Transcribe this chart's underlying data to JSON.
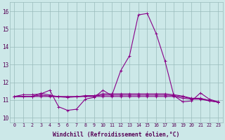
{
  "x": [
    0,
    1,
    2,
    3,
    4,
    5,
    6,
    7,
    8,
    9,
    10,
    11,
    12,
    13,
    14,
    15,
    16,
    17,
    18,
    19,
    20,
    21,
    22,
    23
  ],
  "series": [
    [
      11.2,
      11.3,
      11.3,
      11.35,
      11.55,
      10.62,
      10.42,
      10.48,
      11.05,
      11.15,
      11.55,
      11.25,
      12.65,
      13.5,
      15.8,
      15.88,
      14.75,
      13.2,
      11.25,
      10.9,
      10.95,
      11.4,
      11.05,
      10.9
    ],
    [
      11.2,
      11.2,
      11.2,
      11.2,
      11.2,
      11.2,
      11.2,
      11.2,
      11.2,
      11.2,
      11.2,
      11.2,
      11.2,
      11.2,
      11.2,
      11.2,
      11.2,
      11.2,
      11.2,
      11.1,
      11.05,
      11.05,
      10.95,
      10.88
    ],
    [
      11.2,
      11.2,
      11.2,
      11.28,
      11.22,
      11.18,
      11.16,
      11.18,
      11.22,
      11.22,
      11.28,
      11.28,
      11.28,
      11.28,
      11.28,
      11.28,
      11.28,
      11.28,
      11.25,
      11.18,
      11.08,
      11.08,
      10.98,
      10.88
    ],
    [
      11.2,
      11.2,
      11.2,
      11.38,
      11.28,
      11.18,
      11.16,
      11.18,
      11.25,
      11.25,
      11.35,
      11.35,
      11.35,
      11.35,
      11.35,
      11.35,
      11.35,
      11.35,
      11.3,
      11.22,
      11.1,
      11.1,
      10.98,
      10.88
    ]
  ],
  "line_color": "#880088",
  "marker_color": "#880088",
  "bg_color": "#cce8e8",
  "grid_color": "#99bbbb",
  "text_color": "#550055",
  "xlabel": "Windchill (Refroidissement éolien,°C)",
  "ylim": [
    9.75,
    16.5
  ],
  "yticks": [
    10,
    11,
    12,
    13,
    14,
    15,
    16
  ],
  "xtick_labels": [
    "0",
    "1",
    "2",
    "3",
    "4",
    "5",
    "6",
    "7",
    "8",
    "9",
    "10",
    "11",
    "12",
    "13",
    "14",
    "15",
    "16",
    "17",
    "18",
    "19",
    "20",
    "21",
    "22",
    "23"
  ],
  "marker_size": 2.5,
  "line_width": 0.8
}
